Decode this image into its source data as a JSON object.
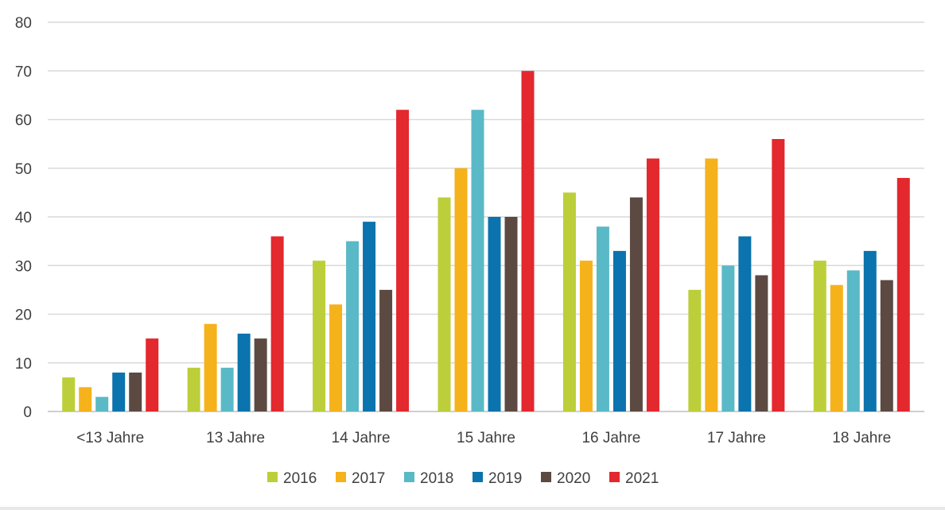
{
  "chart_data": {
    "type": "bar",
    "title": "",
    "xlabel": "",
    "ylabel": "",
    "ylim": [
      0,
      80
    ],
    "yticks": [
      "0",
      "10",
      "20",
      "30",
      "40",
      "50",
      "60",
      "70",
      "80"
    ],
    "grid": true,
    "legend_position": "bottom",
    "categories": [
      "<13 Jahre",
      "13 Jahre",
      "14 Jahre",
      "15 Jahre",
      "16 Jahre",
      "17 Jahre",
      "18 Jahre"
    ],
    "series": [
      {
        "name": "2016",
        "color": "#bccf3a",
        "values": [
          7,
          9,
          31,
          44,
          45,
          25,
          31
        ]
      },
      {
        "name": "2017",
        "color": "#f5b21b",
        "values": [
          5,
          18,
          22,
          50,
          31,
          52,
          26
        ]
      },
      {
        "name": "2018",
        "color": "#5ab9c6",
        "values": [
          3,
          9,
          35,
          62,
          38,
          30,
          29
        ]
      },
      {
        "name": "2019",
        "color": "#0b73ad",
        "values": [
          8,
          16,
          39,
          40,
          33,
          36,
          33
        ]
      },
      {
        "name": "2020",
        "color": "#5c4a42",
        "values": [
          8,
          15,
          25,
          40,
          44,
          28,
          27
        ]
      },
      {
        "name": "2021",
        "color": "#e3282e",
        "values": [
          15,
          36,
          62,
          70,
          52,
          56,
          48
        ]
      }
    ]
  }
}
